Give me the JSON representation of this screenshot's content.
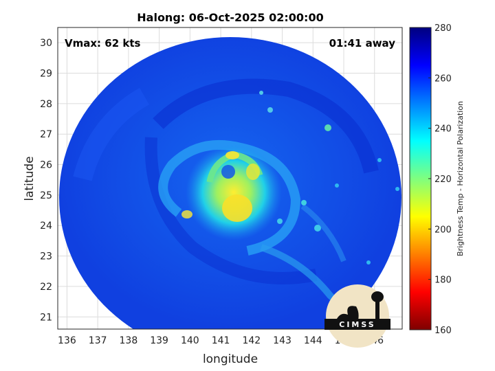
{
  "title": "Halong: 06-Oct-2025 02:00:00",
  "annotations": {
    "vmax": "Vmax: 62 kts",
    "away": "01:41 away"
  },
  "axes": {
    "xlabel": "longitude",
    "ylabel": "latitude",
    "xlim": [
      135.7,
      146.9
    ],
    "ylim": [
      20.6,
      30.5
    ],
    "xticks": [
      "136",
      "137",
      "138",
      "139",
      "140",
      "141",
      "142",
      "143",
      "144",
      "145",
      "146"
    ],
    "yticks": [
      "21",
      "22",
      "23",
      "24",
      "25",
      "26",
      "27",
      "28",
      "29",
      "30"
    ],
    "grid": true
  },
  "colorbar": {
    "label": "Brightness Temp - Horizontal Polarization",
    "range": [
      160,
      280
    ],
    "ticks": [
      "160",
      "180",
      "200",
      "220",
      "240",
      "260",
      "280"
    ],
    "colormap": "jet"
  },
  "storm": {
    "center_lon": 141.4,
    "center_lat": 25.6
  },
  "logo": {
    "text": "CIMSS"
  }
}
